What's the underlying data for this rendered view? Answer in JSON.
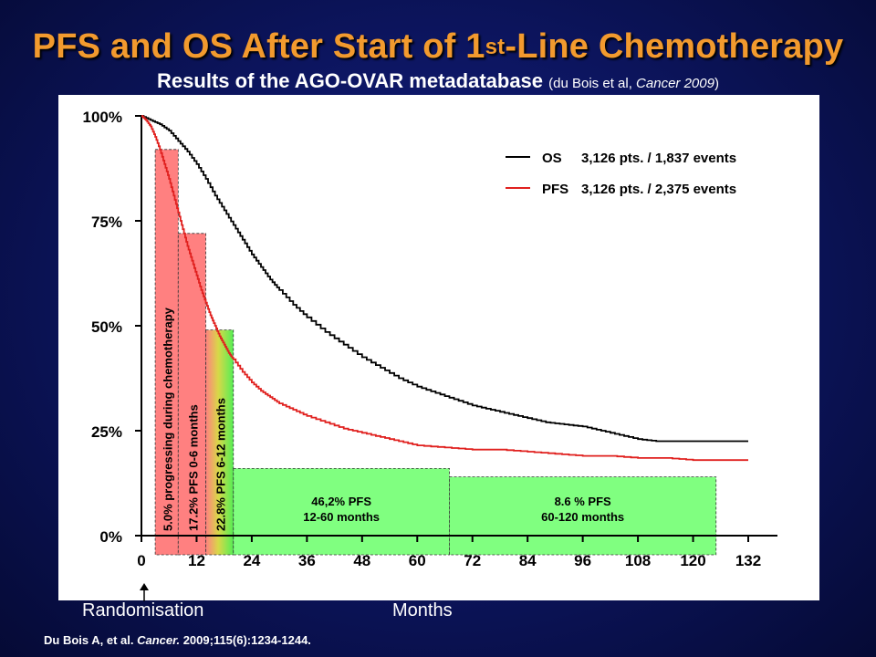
{
  "title_main": "PFS and OS After Start of 1",
  "title_sup": "st",
  "title_end": "-Line Chemotherapy",
  "subtitle_main": "Results of the AGO-OVAR metadatabase",
  "subtitle_ref_pre": "(du Bois et al, ",
  "subtitle_ref_journal": "Cancer 2009",
  "subtitle_ref_post": ")",
  "x_axis_left_label": "Randomisation",
  "x_axis_label": "Months",
  "citation_pre": "Du Bois A, et al. ",
  "citation_journal": "Cancer.",
  "citation_post": " 2009;115(6):1234-1244.",
  "colors": {
    "title": "#f29a2e",
    "os_line": "#000000",
    "pfs_line": "#e0201e",
    "red_box": "#ff8080",
    "green_box": "#80ff80"
  },
  "chart_data": {
    "type": "line",
    "xlim": [
      0,
      132
    ],
    "ylim": [
      0,
      100
    ],
    "x_ticks": [
      0,
      12,
      24,
      36,
      48,
      60,
      72,
      84,
      96,
      108,
      120,
      132
    ],
    "x_tick_labels": [
      "0",
      "12",
      "24",
      "36",
      "48",
      "60",
      "72",
      "84",
      "96",
      "108",
      "120",
      "132"
    ],
    "y_ticks": [
      0,
      25,
      50,
      75,
      100
    ],
    "y_tick_labels": [
      "0%",
      "25%",
      "50%",
      "75%",
      "100%"
    ],
    "grid": false,
    "legend_position": "top-right",
    "series": [
      {
        "name": "OS",
        "legend_text": "3,126 pts. / 1,837 events",
        "color": "#000000",
        "x": [
          0,
          2,
          4,
          6,
          8,
          10,
          12,
          14,
          16,
          18,
          20,
          22,
          24,
          26,
          28,
          30,
          33,
          36,
          40,
          44,
          48,
          52,
          56,
          60,
          64,
          68,
          72,
          76,
          80,
          84,
          88,
          92,
          96,
          100,
          104,
          108,
          112,
          116,
          120,
          126,
          132
        ],
        "values": [
          100,
          99,
          98,
          96.5,
          94,
          91.5,
          88.5,
          85,
          81,
          77.5,
          74,
          70.5,
          67,
          64,
          61,
          58.5,
          55,
          52,
          48.5,
          45.5,
          42.5,
          40,
          37.5,
          35.5,
          34,
          32.5,
          31,
          30,
          29,
          28,
          27,
          26.5,
          26,
          25,
          24,
          23,
          22.5,
          22.5,
          22.5,
          22.5,
          22.5
        ]
      },
      {
        "name": "PFS",
        "legend_text": "3,126 pts. / 2,375 events",
        "color": "#e0201e",
        "x": [
          0,
          1,
          2,
          3,
          4,
          5,
          6,
          7,
          8,
          9,
          10,
          11,
          12,
          13,
          14,
          15,
          16,
          17,
          18,
          19,
          20,
          22,
          24,
          26,
          28,
          30,
          33,
          36,
          40,
          44,
          48,
          52,
          56,
          60,
          66,
          72,
          78,
          84,
          90,
          96,
          102,
          108,
          114,
          120,
          126,
          132
        ],
        "values": [
          100,
          99,
          97.5,
          95,
          92,
          88.5,
          85,
          81,
          77,
          73,
          69,
          65.5,
          62,
          58.5,
          55.5,
          52.5,
          50,
          47.5,
          45.5,
          43.5,
          42,
          39,
          36.5,
          34.5,
          33,
          31.5,
          30,
          28.5,
          27,
          25.5,
          24.5,
          23.5,
          22.5,
          21.5,
          21,
          20.5,
          20.5,
          20,
          19.5,
          19,
          19,
          18.5,
          18.5,
          18,
          18,
          18
        ]
      }
    ],
    "annotations": [
      {
        "text": "5.0% progressing during chemotherapy",
        "x_range": [
          3,
          8
        ],
        "top_value": 92,
        "fill": "red",
        "orientation": "vertical"
      },
      {
        "text": "17.2% PFS 0-6 months",
        "x_range": [
          8,
          14
        ],
        "top_value": 72,
        "fill": "red",
        "orientation": "vertical"
      },
      {
        "text": "22.8% PFS 6-12 months",
        "x_range": [
          14,
          20
        ],
        "top_value": 49,
        "fill": "red-to-green",
        "orientation": "vertical"
      },
      {
        "text_lines": [
          "46,2% PFS",
          "12-60 months"
        ],
        "x_range": [
          20,
          67
        ],
        "top_value": 16,
        "fill": "green",
        "orientation": "horizontal"
      },
      {
        "text_lines": [
          "8.6 % PFS",
          "60-120 months"
        ],
        "x_range": [
          67,
          125
        ],
        "top_value": 14,
        "fill": "green",
        "orientation": "horizontal"
      }
    ]
  }
}
